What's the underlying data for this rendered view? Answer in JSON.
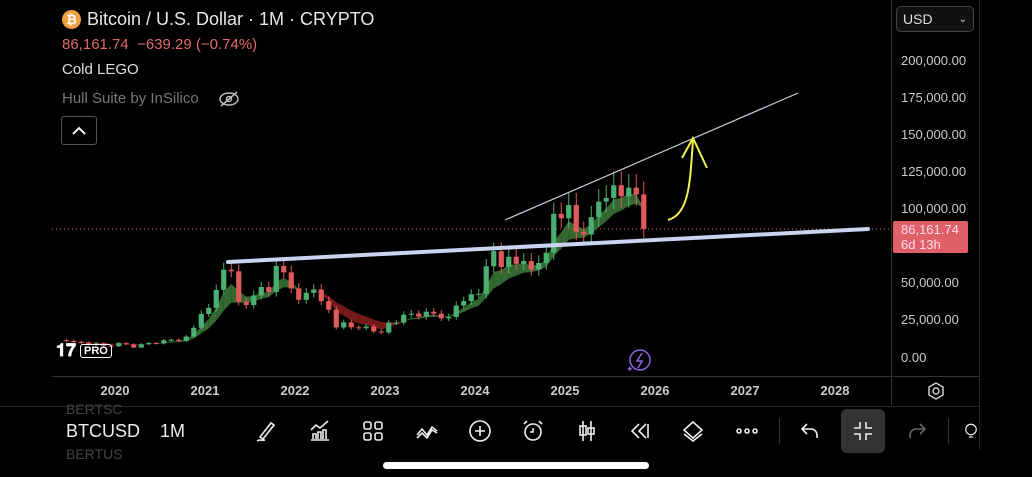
{
  "header": {
    "title": "Bitcoin / U.S. Dollar · 1M · CRYPTO",
    "coin_icon": "bitcoin-icon",
    "price": "86,161.74",
    "change": "−639.29 (−0.74%)",
    "indicator_1": "Cold LEGO",
    "indicator_2": "Hull Suite by InSilico"
  },
  "currency": "USD",
  "price_tag": {
    "price": "86,161.74",
    "countdown": "6d 13h",
    "color": "#e06068"
  },
  "y_ticks": [
    "200,000.00",
    "175,000.00",
    "150,000.00",
    "125,000.00",
    "100,000.00",
    "50,000.00",
    "25,000.00",
    "0.00"
  ],
  "x_ticks": [
    "2020",
    "2021",
    "2022",
    "2023",
    "2024",
    "2025",
    "2026",
    "2027",
    "2028"
  ],
  "logo": "TV PRO",
  "toolbar": {
    "symbol": "BTCUSD",
    "timeframe": "1M",
    "ghost_above": "BERTSC",
    "ghost_below": "BERTUS"
  },
  "colors": {
    "up": "#4caf72",
    "down": "#e05a5a",
    "hull_up": "#3d7a3a",
    "hull_down": "#8a1f1f",
    "annotation": "#f0f050"
  },
  "chart_data": {
    "type": "candlestick",
    "interval": "1M",
    "start": "2019-06",
    "ylim": [
      0,
      210000
    ],
    "closes": [
      10800,
      10100,
      9600,
      8300,
      9200,
      7600,
      7200,
      9350,
      8500,
      6400,
      8600,
      9450,
      9100,
      11300,
      11600,
      10800,
      13800,
      19700,
      29000,
      33100,
      45200,
      58800,
      57700,
      37300,
      35000,
      41500,
      47100,
      43800,
      61300,
      57000,
      46200,
      38500,
      43200,
      45500,
      37600,
      31800,
      19900,
      23300,
      20000,
      19400,
      20500,
      17200,
      16500,
      23100,
      23100,
      28500,
      29200,
      27200,
      30500,
      29200,
      26000,
      27000,
      34600,
      37700,
      42300,
      42500,
      61100,
      71300,
      60600,
      67500,
      62700,
      64600,
      58900,
      63300,
      70200,
      96400,
      93400,
      102400,
      84400,
      82500,
      94200,
      104600,
      107100,
      115700,
      108200,
      114000,
      109500,
      86161.74
    ]
  }
}
